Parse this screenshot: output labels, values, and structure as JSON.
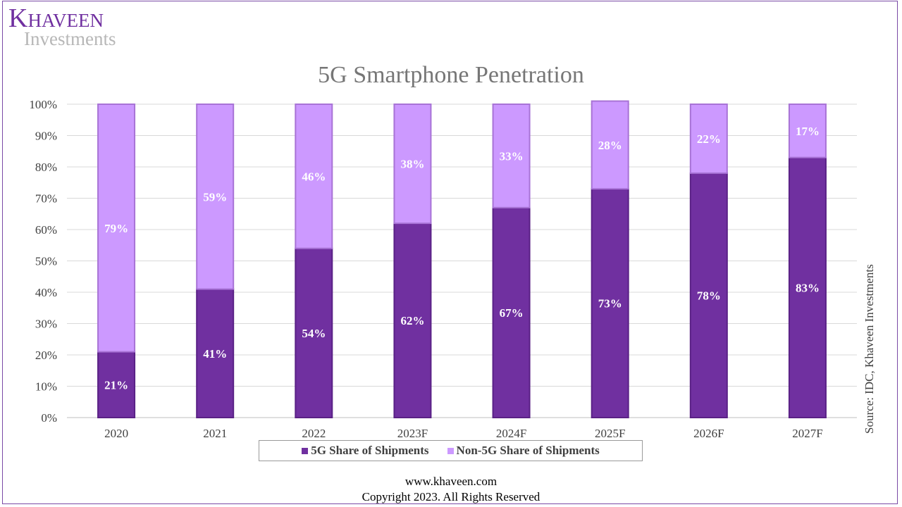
{
  "brand": {
    "name": "Khaveen",
    "sub": "Investments"
  },
  "source": "Source: IDC, Khaveen Investments",
  "footer": {
    "url": "www.khaveen.com",
    "copyright": "Copyright 2023. All Rights Reserved"
  },
  "colors": {
    "primary": "#7030a0",
    "secondary": "#cc99ff",
    "brand": "#7030a0"
  },
  "chart_data": {
    "type": "bar",
    "stacked": true,
    "title": "5G Smartphone Penetration",
    "categories": [
      "2020",
      "2021",
      "2022",
      "2023F",
      "2024F",
      "2025F",
      "2026F",
      "2027F"
    ],
    "series": [
      {
        "name": "5G Share of Shipments",
        "values": [
          21,
          41,
          54,
          62,
          67,
          73,
          78,
          83
        ],
        "labels": [
          "21%",
          "41%",
          "54%",
          "62%",
          "67%",
          "73%",
          "78%",
          "83%"
        ]
      },
      {
        "name": "Non-5G Share of Shipments",
        "values": [
          79,
          59,
          46,
          38,
          33,
          28,
          22,
          17
        ],
        "labels": [
          "79%",
          "59%",
          "46%",
          "38%",
          "33%",
          "28%",
          "22%",
          "17%"
        ]
      }
    ],
    "ylim": [
      0,
      100
    ],
    "yticks": [
      "0%",
      "10%",
      "20%",
      "30%",
      "40%",
      "50%",
      "60%",
      "70%",
      "80%",
      "90%",
      "100%"
    ],
    "grid": true,
    "legend": "bottom",
    "xlabel": "",
    "ylabel": ""
  }
}
